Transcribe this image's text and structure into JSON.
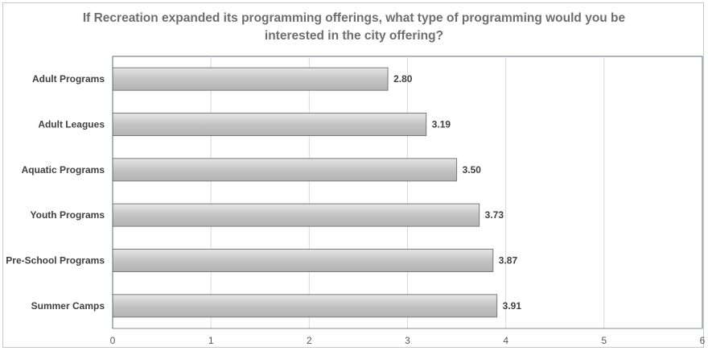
{
  "chart_data": {
    "type": "bar",
    "orientation": "horizontal",
    "title": [
      "If Recreation expanded its programming offerings, what type of programming would you be",
      "interested in the city offering?"
    ],
    "categories": [
      "Adult Programs",
      "Adult Leagues",
      "Aquatic Programs",
      "Youth Programs",
      "Pre-School Programs",
      "Summer Camps"
    ],
    "values": [
      2.8,
      3.19,
      3.5,
      3.73,
      3.87,
      3.91
    ],
    "value_labels": [
      "2.80",
      "3.19",
      "3.50",
      "3.73",
      "3.87",
      "3.91"
    ],
    "xlim": [
      0,
      6
    ],
    "xticks": [
      "0",
      "1",
      "2",
      "3",
      "4",
      "5",
      "6"
    ],
    "grid": true,
    "bar_color": "#c8c8c8",
    "bar_edge_color": "#7a7a7a"
  }
}
